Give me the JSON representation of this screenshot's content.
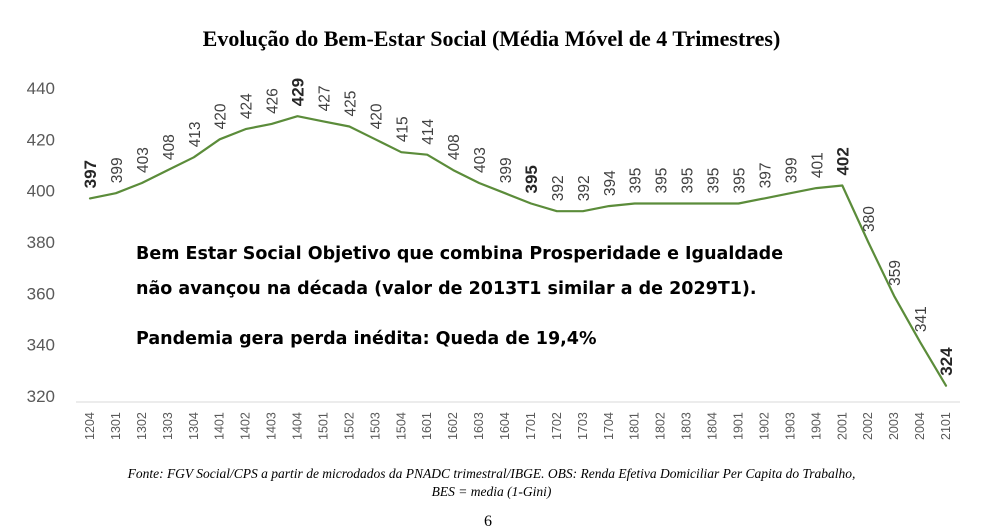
{
  "chart_data": {
    "type": "line",
    "title": "Evolução do Bem-Estar Social (Média Móvel de 4 Trimestres)",
    "categories": [
      "1204",
      "1301",
      "1302",
      "1303",
      "1304",
      "1401",
      "1402",
      "1403",
      "1404",
      "1501",
      "1502",
      "1503",
      "1504",
      "1601",
      "1602",
      "1603",
      "1604",
      "1701",
      "1702",
      "1703",
      "1704",
      "1801",
      "1802",
      "1803",
      "1804",
      "1901",
      "1902",
      "1903",
      "1904",
      "2001",
      "2002",
      "2003",
      "2004",
      "2101"
    ],
    "series": [
      {
        "values": [
          397,
          399,
          403,
          408,
          413,
          420,
          424,
          426,
          429,
          427,
          425,
          420,
          415,
          414,
          408,
          403,
          399,
          395,
          392,
          392,
          394,
          395,
          395,
          395,
          395,
          395,
          397,
          399,
          401,
          402,
          380,
          359,
          341,
          324
        ],
        "color": "#5b8c3a"
      }
    ],
    "data_labels": [
      "397",
      "399",
      "403",
      "408",
      "413",
      "420",
      "424",
      "426",
      "429",
      "427",
      "425",
      "420",
      "415",
      "414",
      "408",
      "403",
      "399",
      "395",
      "392",
      "392",
      "394",
      "395",
      "395",
      "395",
      "395",
      "395",
      "397",
      "399",
      "401",
      "402",
      "380",
      "359",
      "341",
      "324"
    ],
    "bold_labels": [
      "1204",
      "1404",
      "1701",
      "2001",
      "2101"
    ],
    "y_ticks": [
      "440",
      "420",
      "400",
      "380",
      "360",
      "340",
      "320"
    ],
    "ylim": [
      320,
      440
    ],
    "grid": false,
    "legend": "none",
    "annotations": [
      "Bem Estar Social Objetivo que combina Prosperidade e Igualdade",
      "não avançou na década (valor de 2013T1 similar a de 2029T1).",
      "Pandemia gera perda inédita: Queda de 19,4%"
    ],
    "source_line1": "Fonte: FGV Social/CPS a partir de microdados da PNADC trimestral/IBGE. OBS: Renda Efetiva Domiciliar Per Capita do Trabalho,",
    "source_line2": "BES = media (1-Gini)"
  }
}
